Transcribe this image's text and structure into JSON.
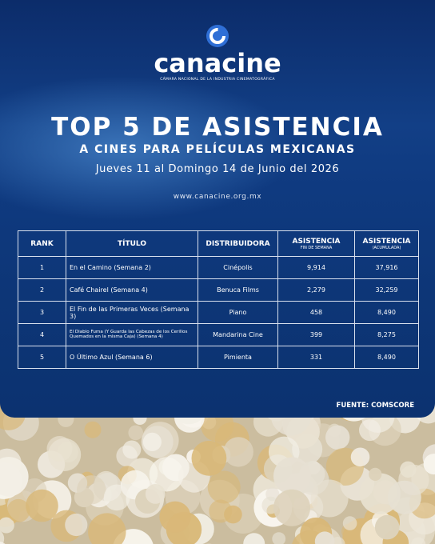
{
  "header": {
    "logo_name": "canacine",
    "logo_subtitle": "CÁMARA NACIONAL DE LA INDUSTRIA CINEMATOGRÁFICA",
    "title": "TOP 5 DE ASISTENCIA",
    "subtitle": "A CINES PARA PELÍCULAS MEXICANAS",
    "date": "Jueves 11 al Domingo 14 de Junio del 2026",
    "url": "www.canacine.org.mx"
  },
  "table": {
    "columns": [
      {
        "label": "RANK"
      },
      {
        "label": "TÍTULO"
      },
      {
        "label": "DISTRIBUIDORA"
      },
      {
        "label": "ASISTENCIA",
        "sublabel": "FIN DE SEMANA"
      },
      {
        "label": "ASISTENCIA",
        "sublabel": "(ACUMULADA)"
      }
    ],
    "rows": [
      [
        "1",
        "En el Camino (Semana 2)",
        "Cinépolis",
        "9,914",
        "37,916"
      ],
      [
        "2",
        "Café Chairel (Semana 4)",
        "Benuca Films",
        "2,279",
        "32,259"
      ],
      [
        "3",
        "El Fin de las Primeras Veces (Semana 3)",
        "Piano",
        "458",
        "8,490"
      ],
      [
        "4",
        "El Diablo Fuma (Y Guarda las Cabezas de los Cerillos Quemados en la misma Caja) (Semana 4)",
        "Mandarina Cine",
        "399",
        "8,275"
      ],
      [
        "5",
        "O Último Azul (Semana 6)",
        "Pimienta",
        "331",
        "8,490"
      ]
    ]
  },
  "source": "FUENTE: COMSCORE"
}
